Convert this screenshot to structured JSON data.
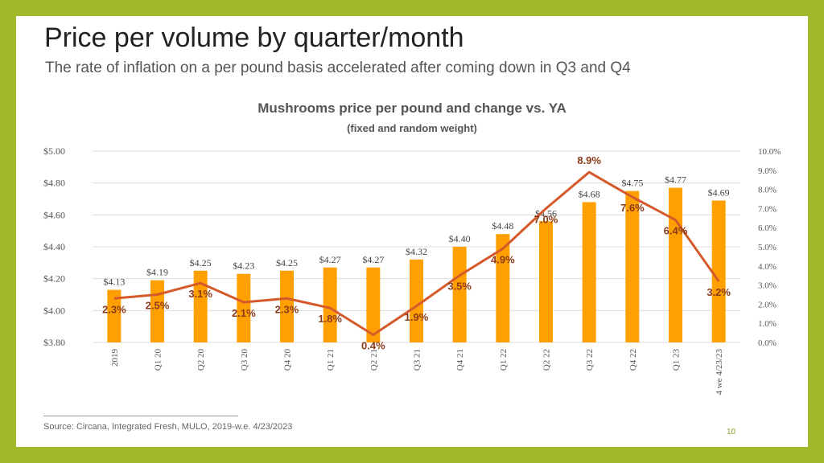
{
  "slide": {
    "title": "Price per volume by quarter/month",
    "subtitle": "The rate of inflation on a per pound basis accelerated after coming down in Q3 and Q4",
    "source": "Source: Circana, Integrated Fresh, MULO, 2019-w.e. 4/23/2023",
    "page_number": "10",
    "colors": {
      "border": "#A2B72A",
      "bar": "#FFA000",
      "line": "#D55A2B",
      "pct_label": "#8B3A1A"
    }
  },
  "chart_data": {
    "type": "bar",
    "title": "Mushrooms price per pound and change vs. YA",
    "subtitle": "(fixed and random weight)",
    "categories": [
      "2019",
      "Q1 20",
      "Q2 20",
      "Q3 20",
      "Q4 20",
      "Q1 21",
      "Q2 21",
      "Q3 21",
      "Q4 21",
      "Q1 22",
      "Q2 22",
      "Q3 22",
      "Q4 22",
      "Q1 23",
      "4 we 4/23/23"
    ],
    "series": [
      {
        "type": "bar",
        "axis": "left",
        "values": [
          4.13,
          4.19,
          4.25,
          4.23,
          4.25,
          4.27,
          4.27,
          4.32,
          4.4,
          4.48,
          4.56,
          4.68,
          4.75,
          4.77,
          4.69
        ],
        "labels": [
          "$4.13",
          "$4.19",
          "$4.25",
          "$4.23",
          "$4.25",
          "$4.27",
          "$4.27",
          "$4.32",
          "$4.40",
          "$4.48",
          "$4.56",
          "$4.68",
          "$4.75",
          "$4.77",
          "$4.69"
        ]
      },
      {
        "type": "line",
        "axis": "right",
        "values": [
          2.3,
          2.5,
          3.1,
          2.1,
          2.3,
          1.8,
          0.4,
          1.9,
          3.5,
          4.9,
          7.0,
          8.9,
          7.6,
          6.4,
          3.2
        ],
        "labels": [
          "2.3%",
          "2.5%",
          "3.1%",
          "2.1%",
          "2.3%",
          "1.8%",
          "0.4%",
          "1.9%",
          "3.5%",
          "4.9%",
          "7.0%",
          "8.9%",
          "7.6%",
          "6.4%",
          "3.2%"
        ]
      }
    ],
    "y_left": {
      "range": [
        3.8,
        5.0
      ],
      "ticks": [
        "$5.00",
        "$4.80",
        "$4.60",
        "$4.40",
        "$4.20",
        "$4.00",
        "$3.80"
      ]
    },
    "y_right": {
      "range": [
        0,
        10
      ],
      "ticks": [
        "10.0%",
        "9.0%",
        "8.0%",
        "7.0%",
        "6.0%",
        "5.0%",
        "4.0%",
        "3.0%",
        "2.0%",
        "1.0%",
        "0.0%"
      ]
    },
    "grid": true,
    "legend": "none"
  }
}
